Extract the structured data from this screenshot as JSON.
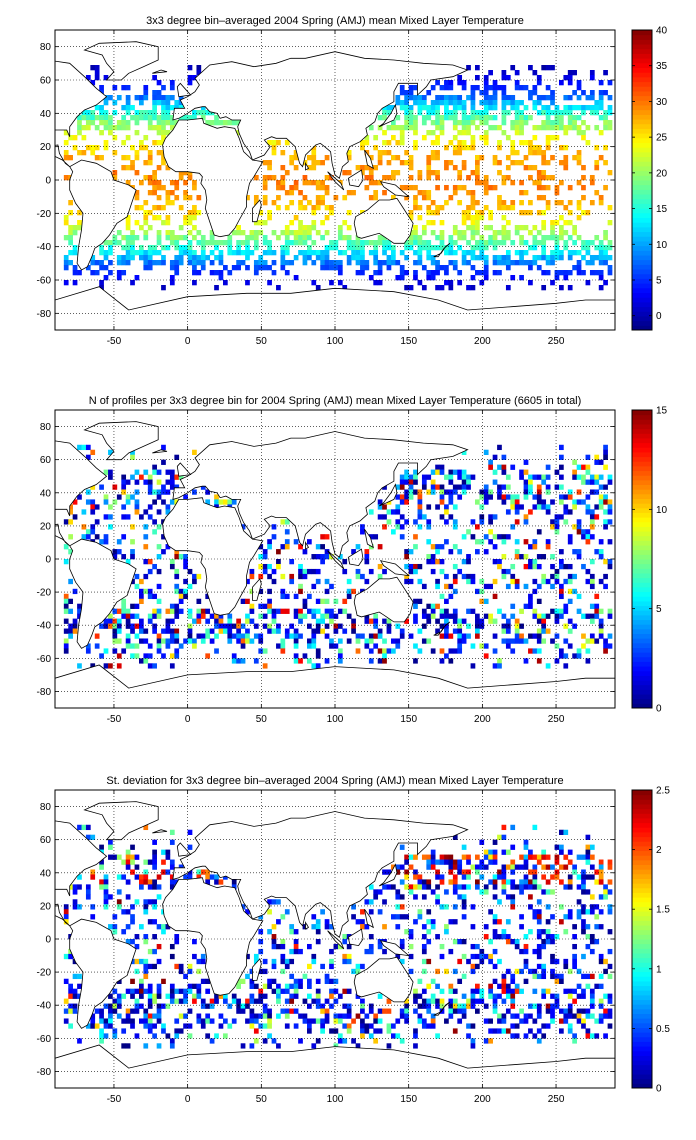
{
  "figure": {
    "panels": [
      {
        "title": "3x3 degree bin–averaged 2004 Spring (AMJ) mean Mixed Layer Temperature",
        "colorbar_ticks": [
          "40",
          "35",
          "30",
          "25",
          "20",
          "15",
          "10",
          "5",
          "0"
        ],
        "seed": 7
      },
      {
        "title": "N of profiles per 3x3 degree bin for 2004 Spring (AMJ) mean Mixed Layer Temperature  (6605 in total)",
        "colorbar_ticks": [
          "15",
          "10",
          "5",
          "0"
        ],
        "seed": 19
      },
      {
        "title": "St. deviation for 3x3 degree bin–averaged 2004 Spring (AMJ) mean Mixed Layer Temperature",
        "colorbar_ticks": [
          "2.5",
          "2",
          "1.5",
          "1",
          "0.5",
          "0"
        ],
        "seed": 31
      }
    ],
    "x_ticks": [
      "-50",
      "0",
      "50",
      "100",
      "150",
      "200",
      "250"
    ],
    "y_ticks": [
      "80",
      "60",
      "40",
      "20",
      "0",
      "-20",
      "-40",
      "-60",
      "-80"
    ]
  },
  "chart_data": [
    {
      "type": "heatmap",
      "title": "3x3 degree bin–averaged 2004 Spring (AMJ) mean Mixed Layer Temperature",
      "xlim": [
        -90,
        290
      ],
      "ylim": [
        -90,
        90
      ],
      "x_ticks": [
        -50,
        0,
        50,
        100,
        150,
        200,
        250
      ],
      "y_ticks": [
        80,
        60,
        40,
        20,
        0,
        -20,
        -40,
        -60,
        -80
      ],
      "grid": true,
      "colormap": "jet",
      "color_range": [
        -2,
        40
      ],
      "colorbar_ticks": [
        40,
        35,
        30,
        25,
        20,
        15,
        10,
        5,
        0
      ],
      "bin_size_deg": 3,
      "pattern": "temperature decreasing with latitude: ~28 near equator, ~20 at 35, ~10 at 45, near 0 at 60"
    },
    {
      "type": "heatmap",
      "title": "N of profiles per 3x3 degree bin for 2004 Spring (AMJ) mean Mixed Layer Temperature  (6605 in total)",
      "xlim": [
        -90,
        290
      ],
      "ylim": [
        -90,
        90
      ],
      "x_ticks": [
        -50,
        0,
        50,
        100,
        150,
        200,
        250
      ],
      "y_ticks": [
        80,
        60,
        40,
        20,
        0,
        -20,
        -40,
        -60,
        -80
      ],
      "grid": true,
      "colormap": "jet",
      "color_range": [
        0,
        15
      ],
      "colorbar_ticks": [
        15,
        10,
        5,
        0
      ],
      "bin_size_deg": 3,
      "total_profiles": 6605
    },
    {
      "type": "heatmap",
      "title": "St. deviation for 3x3 degree bin–averaged 2004 Spring (AMJ) mean Mixed Layer Temperature",
      "xlim": [
        -90,
        290
      ],
      "ylim": [
        -90,
        90
      ],
      "x_ticks": [
        -50,
        0,
        50,
        100,
        150,
        200,
        250
      ],
      "y_ticks": [
        80,
        60,
        40,
        20,
        0,
        -20,
        -40,
        -60,
        -80
      ],
      "grid": true,
      "colormap": "jet",
      "color_range": [
        0,
        2.5
      ],
      "colorbar_ticks": [
        2.5,
        2,
        1.5,
        1,
        0.5,
        0
      ],
      "bin_size_deg": 3
    }
  ]
}
